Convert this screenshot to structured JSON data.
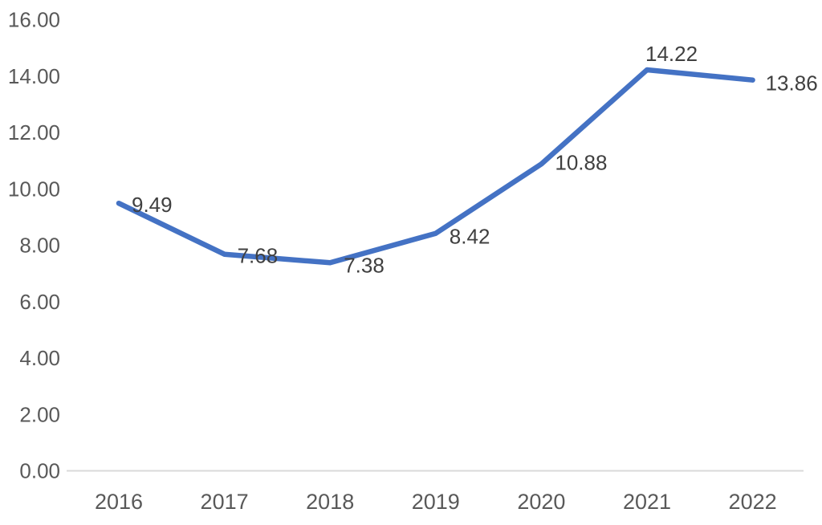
{
  "chart_data": {
    "type": "line",
    "categories": [
      "2016",
      "2017",
      "2018",
      "2019",
      "2020",
      "2021",
      "2022"
    ],
    "values": [
      9.49,
      7.68,
      7.38,
      8.42,
      10.88,
      14.22,
      13.86
    ],
    "data_labels": [
      "9.49",
      "7.68",
      "7.38",
      "8.42",
      "10.88",
      "14.22",
      "13.86"
    ],
    "title": "",
    "xlabel": "",
    "ylabel": "",
    "ylim": [
      0,
      16
    ],
    "ytick_step": 2,
    "ytick_labels": [
      "0.00",
      "2.00",
      "4.00",
      "6.00",
      "8.00",
      "10.00",
      "12.00",
      "14.00",
      "16.00"
    ],
    "grid": false,
    "legend": "none",
    "line_color": "#4472C4",
    "axis_line_color": "#D9D9D9",
    "tick_text_color": "#595959",
    "data_label_color": "#404040"
  }
}
